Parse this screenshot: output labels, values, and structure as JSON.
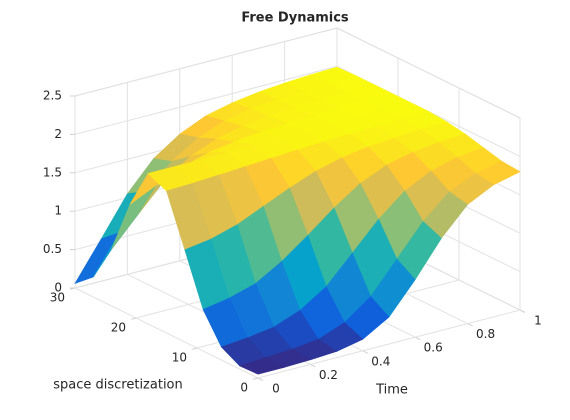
{
  "chart_data": {
    "type": "surface",
    "title": "Free Dynamics",
    "xlabel": "Time",
    "ylabel": "space discretization",
    "x": [
      0,
      0.1,
      0.2,
      0.3,
      0.4,
      0.5,
      0.6,
      0.7,
      0.8,
      0.9,
      1
    ],
    "y": [
      0,
      3,
      6,
      9,
      12,
      15,
      18,
      21,
      24,
      27,
      30
    ],
    "z": [
      [
        0.05,
        0.05,
        0.06,
        0.08,
        0.15,
        0.35,
        0.75,
        1.2,
        1.55,
        1.72,
        1.8
      ],
      [
        0.04,
        0.06,
        0.08,
        0.12,
        0.25,
        0.5,
        0.9,
        1.3,
        1.6,
        1.75,
        1.82
      ],
      [
        0.17,
        0.2,
        0.25,
        0.38,
        0.6,
        0.95,
        1.3,
        1.58,
        1.75,
        1.84,
        1.88
      ],
      [
        0.54,
        0.6,
        0.7,
        0.9,
        1.15,
        1.42,
        1.65,
        1.8,
        1.88,
        1.92,
        1.94
      ],
      [
        1.2,
        1.25,
        1.35,
        1.5,
        1.65,
        1.78,
        1.87,
        1.92,
        1.95,
        1.97,
        1.98
      ],
      [
        1.85,
        1.86,
        1.88,
        1.9,
        1.92,
        1.94,
        1.96,
        1.97,
        1.98,
        1.99,
        2.0
      ],
      [
        1.96,
        1.96,
        1.96,
        1.97,
        1.98,
        1.98,
        1.99,
        2.0,
        2.0,
        2.0,
        2.0
      ],
      [
        1.44,
        1.6,
        1.75,
        1.85,
        1.9,
        1.94,
        1.96,
        1.98,
        1.99,
        2.0,
        2.0
      ],
      [
        0.74,
        1.1,
        1.45,
        1.68,
        1.82,
        1.9,
        1.94,
        1.97,
        1.98,
        1.99,
        2.0
      ],
      [
        0.26,
        0.75,
        1.2,
        1.5,
        1.72,
        1.85,
        1.92,
        1.95,
        1.97,
        1.99,
        2.0
      ],
      [
        0.06,
        0.55,
        1.05,
        1.42,
        1.65,
        1.8,
        1.88,
        1.93,
        1.96,
        1.98,
        1.99
      ]
    ],
    "xlim": [
      0,
      1
    ],
    "xticks": [
      0,
      0.2,
      0.4,
      0.6,
      0.8,
      1
    ],
    "ylim": [
      0,
      30
    ],
    "yticks": [
      0,
      10,
      20,
      30
    ],
    "zlim": [
      0,
      2.5
    ],
    "zticks": [
      0,
      0.5,
      1,
      1.5,
      2,
      2.5
    ],
    "grid": true,
    "colormap": [
      "#352a87",
      "#0f5cdd",
      "#1481d6",
      "#06a4ca",
      "#2eb7a4",
      "#87bf77",
      "#d1bb59",
      "#fec832",
      "#f9fb0e"
    ]
  }
}
